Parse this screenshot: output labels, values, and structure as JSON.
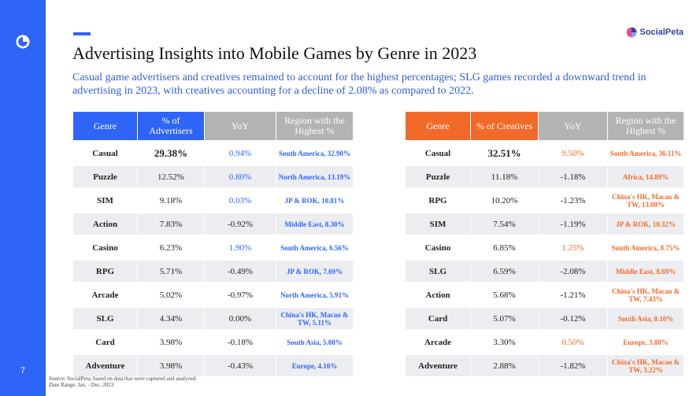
{
  "page": {
    "number": "7"
  },
  "logo": {
    "text": "SocialPeta"
  },
  "title": "Advertising Insights into Mobile Games by Genre in 2023",
  "subtitle": "Casual game advertisers and creatives remained to account for the highest percentages; SLG games recorded a downward trend in advertising in 2023, with creatives accounting for a decline of 2.08% as compared to 2022.",
  "colors": {
    "blue": "#2f65f6",
    "orange": "#f26a2a",
    "gray_header": "#b3b3b3"
  },
  "advertisers_table": {
    "headers": [
      "Genre",
      "% of Advertisers",
      "YoY",
      "Region with the Highest %"
    ],
    "rows": [
      {
        "genre": "Casual",
        "pct": "29.38%",
        "yoy": "0.94%",
        "yoy_color": "blue",
        "region": "South America, 32.90%"
      },
      {
        "genre": "Puzzle",
        "pct": "12.52%",
        "yoy": "0.80%",
        "yoy_color": "blue",
        "region": "North America, 13.19%"
      },
      {
        "genre": "SIM",
        "pct": "9.18%",
        "yoy": "0.03%",
        "yoy_color": "blue",
        "region": "JP & ROK, 10.81%"
      },
      {
        "genre": "Action",
        "pct": "7.83%",
        "yoy": "-0.92%",
        "yoy_color": "dark",
        "region": "Middle East, 8.30%"
      },
      {
        "genre": "Casino",
        "pct": "6.23%",
        "yoy": "1.90%",
        "yoy_color": "blue",
        "region": "South America, 6.56%"
      },
      {
        "genre": "RPG",
        "pct": "5.71%",
        "yoy": "-0.49%",
        "yoy_color": "dark",
        "region": "JP & ROK, 7.69%"
      },
      {
        "genre": "Arcade",
        "pct": "5.02%",
        "yoy": "-0.97%",
        "yoy_color": "dark",
        "region": "North America, 5.91%"
      },
      {
        "genre": "SLG",
        "pct": "4.34%",
        "yoy": "0.00%",
        "yoy_color": "dark",
        "region": "China's HK, Macao & TW, 5.11%"
      },
      {
        "genre": "Card",
        "pct": "3.98%",
        "yoy": "-0.18%",
        "yoy_color": "dark",
        "region": "South Asia, 5.08%"
      },
      {
        "genre": "Adventure",
        "pct": "3.98%",
        "yoy": "-0.43%",
        "yoy_color": "dark",
        "region": "Europe, 4.10%"
      }
    ]
  },
  "creatives_table": {
    "headers": [
      "Genre",
      "% of Creatives",
      "YoY",
      "Region with the Highest %"
    ],
    "rows": [
      {
        "genre": "Casual",
        "pct": "32.51%",
        "yoy": "9.50%",
        "yoy_color": "orange",
        "region": "South America, 36.11%"
      },
      {
        "genre": "Puzzle",
        "pct": "11.18%",
        "yoy": "-1.18%",
        "yoy_color": "dark",
        "region": "Africa, 14.89%"
      },
      {
        "genre": "RPG",
        "pct": "10.20%",
        "yoy": "-1.23%",
        "yoy_color": "dark",
        "region": "China's HK, Macao & TW, 13.08%"
      },
      {
        "genre": "SIM",
        "pct": "7.54%",
        "yoy": "-1.19%",
        "yoy_color": "dark",
        "region": "JP & ROK, 10.32%"
      },
      {
        "genre": "Casino",
        "pct": "6.85%",
        "yoy": "1.25%",
        "yoy_color": "orange",
        "region": "South America, 8.75%"
      },
      {
        "genre": "SLG",
        "pct": "6.59%",
        "yoy": "-2.08%",
        "yoy_color": "dark",
        "region": "Middle East, 8.69%"
      },
      {
        "genre": "Action",
        "pct": "5.68%",
        "yoy": "-1.21%",
        "yoy_color": "dark",
        "region": "China's HK, Macao & TW, 7.43%"
      },
      {
        "genre": "Card",
        "pct": "5.07%",
        "yoy": "-0.12%",
        "yoy_color": "dark",
        "region": "South Asia, 8.10%"
      },
      {
        "genre": "Arcade",
        "pct": "3.30%",
        "yoy": "0.50%",
        "yoy_color": "orange",
        "region": "Europe, 3.88%"
      },
      {
        "genre": "Adventure",
        "pct": "2.88%",
        "yoy": "-1.82%",
        "yoy_color": "dark",
        "region": "China's HK, Macao & TW, 3.22%"
      }
    ]
  },
  "source": {
    "line1": "Source: SocialPeta, based on data that were captured and analyzed.",
    "line2": "Date Range: Jan. - Dec. 2023"
  }
}
